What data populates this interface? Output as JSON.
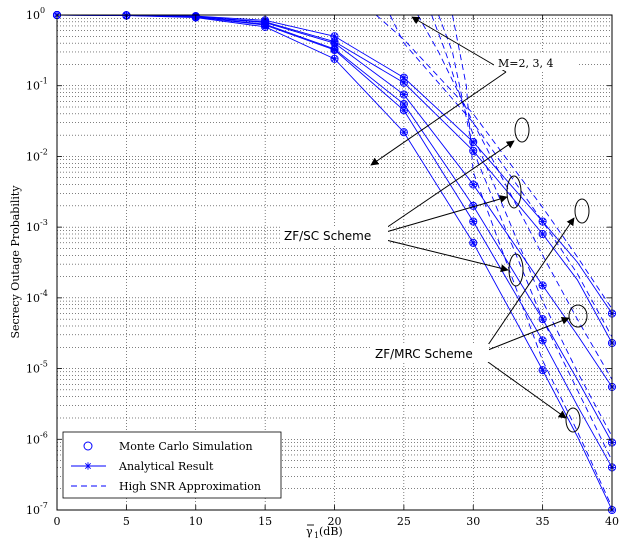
{
  "chart_data": {
    "type": "line",
    "y_scale": "log",
    "grid": true,
    "xlim": [
      0,
      40
    ],
    "ylim": [
      1e-07,
      1
    ],
    "x_ticks": [
      0,
      5,
      10,
      15,
      20,
      25,
      30,
      35,
      40
    ],
    "x_tick_labels": [
      "0",
      "5",
      "10",
      "15",
      "20",
      "25",
      "30",
      "35",
      "40"
    ],
    "y_ticks": [
      1e-07,
      1e-06,
      1e-05,
      0.0001,
      0.001,
      0.01,
      0.1,
      1
    ],
    "y_tick_labels": [
      {
        "base": "10",
        "exp": "-7"
      },
      {
        "base": "10",
        "exp": "-6"
      },
      {
        "base": "10",
        "exp": "-5"
      },
      {
        "base": "10",
        "exp": "-4"
      },
      {
        "base": "10",
        "exp": "-3"
      },
      {
        "base": "10",
        "exp": "-2"
      },
      {
        "base": "10",
        "exp": "-1"
      },
      {
        "base": "10",
        "exp": "0"
      }
    ],
    "xlabel": {
      "main": "γ",
      "sub": "1",
      "unit": " (dB)"
    },
    "ylabel": "Secrecy Outage Probability",
    "legend": {
      "placement": "bottom-left",
      "entries": [
        {
          "label": "Monte Carlo Simulation",
          "style": "circle"
        },
        {
          "label": "Analytical Result",
          "style": "solid-star"
        },
        {
          "label": "High SNR Approximation",
          "style": "dashed"
        }
      ]
    },
    "line_color": "#0000ff",
    "sim_x": [
      0,
      5,
      10,
      15,
      20,
      25,
      30,
      35,
      40
    ],
    "series": [
      {
        "scheme": "ZF/SC",
        "M": 2,
        "analytic": [
          [
            0,
            0.998
          ],
          [
            5,
            0.993
          ],
          [
            10,
            0.965
          ],
          [
            15,
            0.84
          ],
          [
            20,
            0.5
          ],
          [
            25,
            0.13
          ],
          [
            30,
            0.016
          ],
          [
            35,
            0.0012
          ],
          [
            37.5,
            0.00032
          ],
          [
            40,
            6e-05
          ]
        ],
        "approx": [
          [
            23,
            1
          ],
          [
            25,
            0.45
          ],
          [
            30,
            0.04
          ],
          [
            35,
            0.0019
          ],
          [
            37.5,
            0.00038
          ],
          [
            40,
            7e-05
          ]
        ]
      },
      {
        "scheme": "ZF/SC",
        "M": 3,
        "analytic": [
          [
            0,
            0.998
          ],
          [
            5,
            0.99
          ],
          [
            10,
            0.95
          ],
          [
            15,
            0.78
          ],
          [
            20,
            0.4
          ],
          [
            25,
            0.075
          ],
          [
            30,
            0.004
          ],
          [
            35,
            0.00015
          ],
          [
            37.5,
            3e-05
          ],
          [
            40,
            5.5e-06
          ]
        ],
        "approx": [
          [
            26,
            1
          ],
          [
            27.5,
            0.3
          ],
          [
            30,
            0.03
          ],
          [
            35,
            0.0004
          ],
          [
            37.5,
            5e-05
          ],
          [
            40,
            7e-06
          ]
        ]
      },
      {
        "scheme": "ZF/SC",
        "M": 4,
        "analytic": [
          [
            0,
            0.998
          ],
          [
            5,
            0.985
          ],
          [
            10,
            0.935
          ],
          [
            15,
            0.72
          ],
          [
            20,
            0.32
          ],
          [
            25,
            0.045
          ],
          [
            30,
            0.0012
          ],
          [
            35,
            2.5e-05
          ],
          [
            37.5,
            3e-06
          ],
          [
            40,
            4e-07
          ]
        ],
        "approx": [
          [
            27.5,
            1
          ],
          [
            28.5,
            0.3
          ],
          [
            30,
            0.012
          ],
          [
            35,
            5e-05
          ],
          [
            37.5,
            5e-06
          ],
          [
            40,
            5e-07
          ]
        ]
      },
      {
        "scheme": "ZF/MRC",
        "M": 2,
        "analytic": [
          [
            0,
            0.998
          ],
          [
            5,
            0.99
          ],
          [
            10,
            0.955
          ],
          [
            15,
            0.8
          ],
          [
            20,
            0.42
          ],
          [
            25,
            0.11
          ],
          [
            30,
            0.012
          ],
          [
            35,
            0.0008
          ],
          [
            37.5,
            0.00018
          ],
          [
            40,
            2.3e-05
          ]
        ],
        "approx": [
          [
            24,
            1
          ],
          [
            25,
            0.4
          ],
          [
            30,
            0.03
          ],
          [
            35,
            0.0012
          ],
          [
            37.5,
            0.00022
          ],
          [
            40,
            2.8e-05
          ]
        ]
      },
      {
        "scheme": "ZF/MRC",
        "M": 3,
        "analytic": [
          [
            0,
            0.998
          ],
          [
            5,
            0.987
          ],
          [
            10,
            0.94
          ],
          [
            15,
            0.74
          ],
          [
            20,
            0.33
          ],
          [
            25,
            0.055
          ],
          [
            30,
            0.002
          ],
          [
            35,
            5e-05
          ],
          [
            37.5,
            7e-06
          ],
          [
            40,
            9e-07
          ]
        ],
        "approx": [
          [
            27,
            1
          ],
          [
            28,
            0.3
          ],
          [
            30,
            0.02
          ],
          [
            35,
            9e-05
          ],
          [
            37.5,
            9e-06
          ],
          [
            40,
            1.1e-06
          ]
        ]
      },
      {
        "scheme": "ZF/MRC",
        "M": 4,
        "analytic": [
          [
            0,
            0.998
          ],
          [
            5,
            0.982
          ],
          [
            10,
            0.92
          ],
          [
            15,
            0.68
          ],
          [
            20,
            0.24
          ],
          [
            25,
            0.022
          ],
          [
            30,
            0.0006
          ],
          [
            35,
            9.5e-06
          ],
          [
            37.5,
            1.1e-06
          ],
          [
            40,
            1e-07
          ]
        ],
        "approx": [
          [
            28.5,
            1
          ],
          [
            29.5,
            0.1
          ],
          [
            30,
            0.006
          ],
          [
            35,
            1.3e-05
          ],
          [
            37.5,
            1.3e-06
          ],
          [
            40,
            1.1e-07
          ]
        ]
      }
    ],
    "annotations": [
      {
        "text": "M=2, 3, 4"
      },
      {
        "text": "ZF/SC Scheme"
      },
      {
        "text": "ZF/MRC Scheme"
      }
    ]
  }
}
